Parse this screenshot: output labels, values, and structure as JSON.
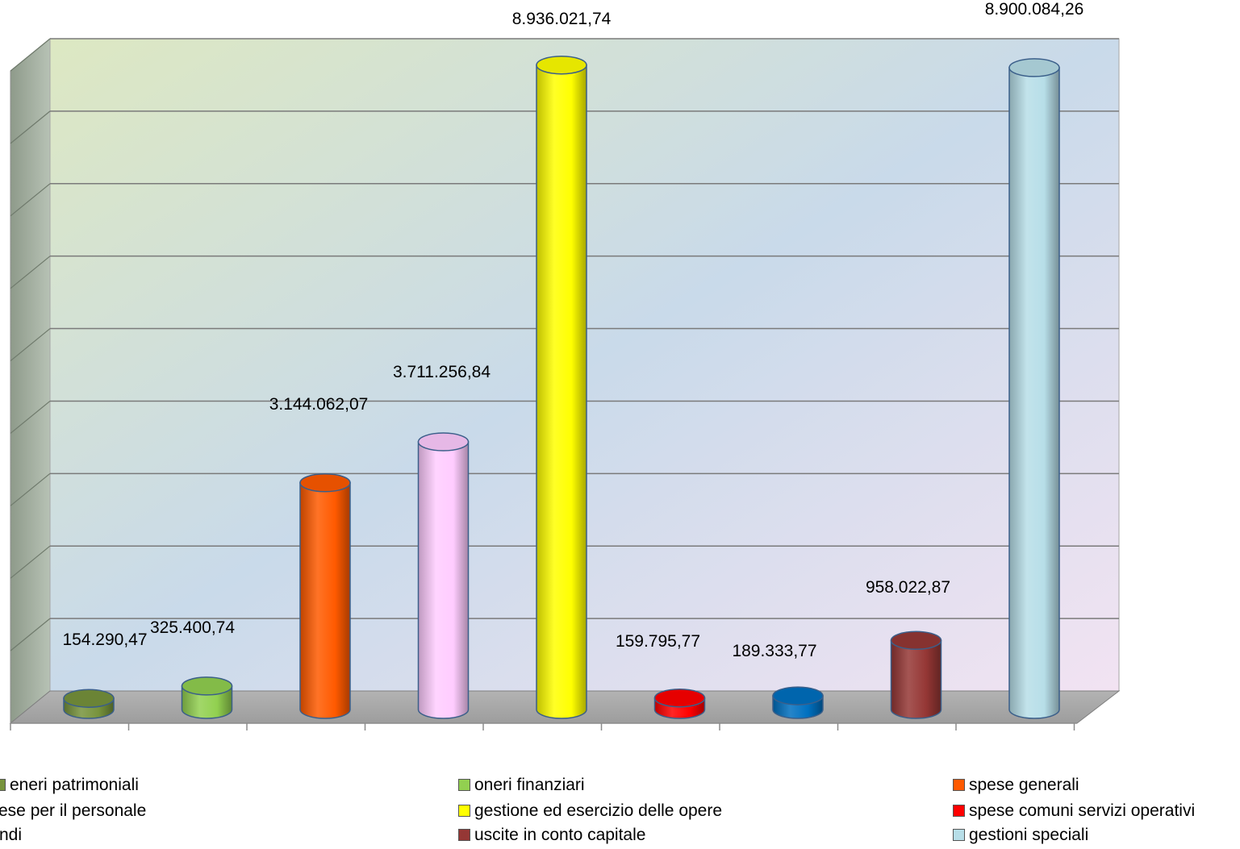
{
  "chart_data": {
    "type": "bar",
    "style": "3d-cylinder",
    "grid": true,
    "legend_placement": "bottom",
    "ylim": [
      0,
      9000000
    ],
    "categories": [
      "oneri patrimoniali",
      "oneri finanziari",
      "spese generali",
      "spese per il personale",
      "gestione ed esercizio delle opere",
      "spese comuni servizi operativi",
      "fondi",
      "uscite in conto capitale",
      "gestioni speciali"
    ],
    "values": [
      154290.47,
      325400.74,
      3144062.07,
      3711256.84,
      8936021.74,
      159795.77,
      189333.77,
      958022.87,
      8900084.26
    ],
    "data_labels": [
      "154.290,47",
      "325.400,74",
      "3.144.062,07",
      "3.711.256,84",
      "8.936.021,74",
      "159.795,77",
      "189.333,77",
      "958.022,87",
      "8.900.084,26"
    ],
    "colors": [
      "#77933C",
      "#92D050",
      "#FF5A00",
      "#FFCCFF",
      "#FFFF00",
      "#FF0000",
      "#0070C0",
      "#953735",
      "#B7DEE8"
    ],
    "legend": [
      "eneri patrimoniali",
      "oneri finanziari",
      "spese generali",
      "ese per il personale",
      "gestione ed esercizio delle opere",
      "spese comuni servizi operativi",
      "ndi",
      "uscite in conto capitale",
      "gestioni speciali"
    ]
  }
}
